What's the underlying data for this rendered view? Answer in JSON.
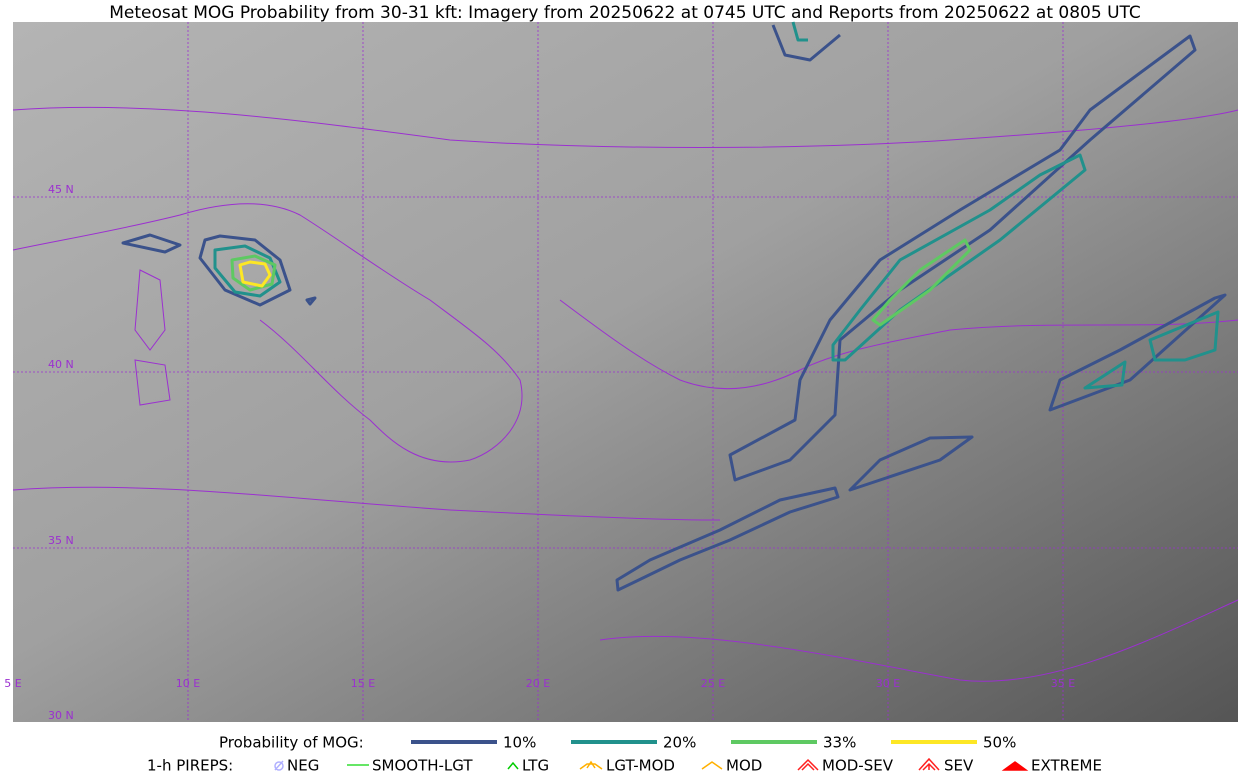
{
  "title": "Meteosat MOG Probability from 30-31 kft: Imagery from 20250622 at 0745 UTC and Reports from 20250622 at 0805 UTC",
  "map": {
    "lat_labels": [
      "45 N",
      "40 N",
      "35 N",
      "30 N"
    ],
    "lon_labels": [
      "5 E",
      "10 E",
      "15 E",
      "20 E",
      "25 E",
      "30 E",
      "35 E"
    ]
  },
  "legend": {
    "probability": {
      "label": "Probability of MOG:",
      "items": [
        {
          "label": "10%",
          "color": "#3b528b"
        },
        {
          "label": "20%",
          "color": "#21918c"
        },
        {
          "label": "33%",
          "color": "#5ec962"
        },
        {
          "label": "50%",
          "color": "#fde725"
        }
      ]
    },
    "pireps": {
      "label": "1-h PIREPS:",
      "items": [
        {
          "label": "NEG",
          "color": "#b0b0ff"
        },
        {
          "label": "SMOOTH-LGT",
          "color": "#33dd33"
        },
        {
          "label": "LTG",
          "color": "#00cc00"
        },
        {
          "label": "LGT-MOD",
          "color": "#ffb000"
        },
        {
          "label": "MOD",
          "color": "#ffb000"
        },
        {
          "label": "MOD-SEV",
          "color": "#ff2020"
        },
        {
          "label": "SEV",
          "color": "#ff2020"
        },
        {
          "label": "EXTREME",
          "color": "#ff0000"
        }
      ]
    }
  }
}
